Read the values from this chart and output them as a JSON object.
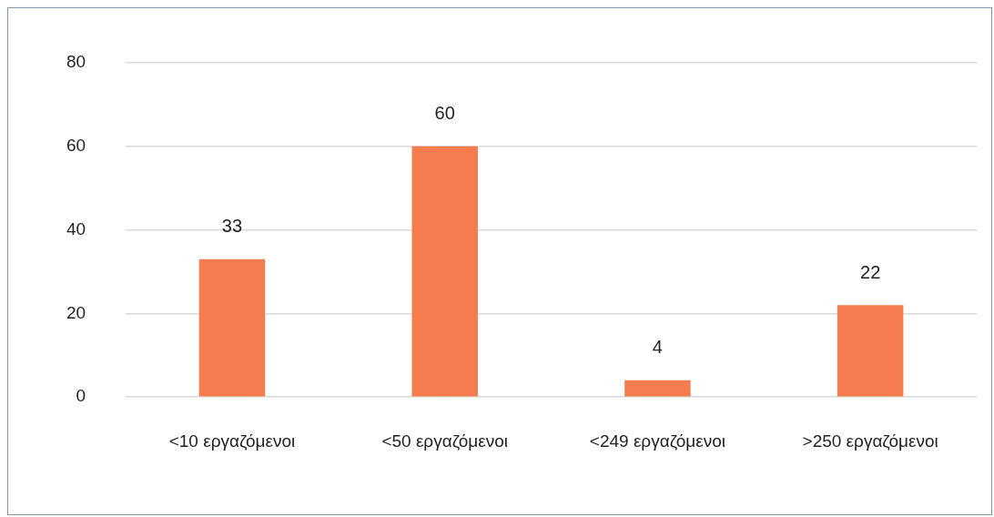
{
  "chart_data": {
    "type": "bar",
    "categories": [
      "<10 εργαζόμενοι",
      "<50 εργαζόμενοι",
      "<249 εργαζόμενοι",
      ">250 εργαζόμενοι"
    ],
    "values": [
      33,
      60,
      4,
      22
    ],
    "color": "#f47c4f",
    "ylim": [
      0,
      80
    ],
    "yticks": [
      0,
      20,
      40,
      60,
      80
    ],
    "grid": "y",
    "legend": false,
    "data_labels": true
  }
}
